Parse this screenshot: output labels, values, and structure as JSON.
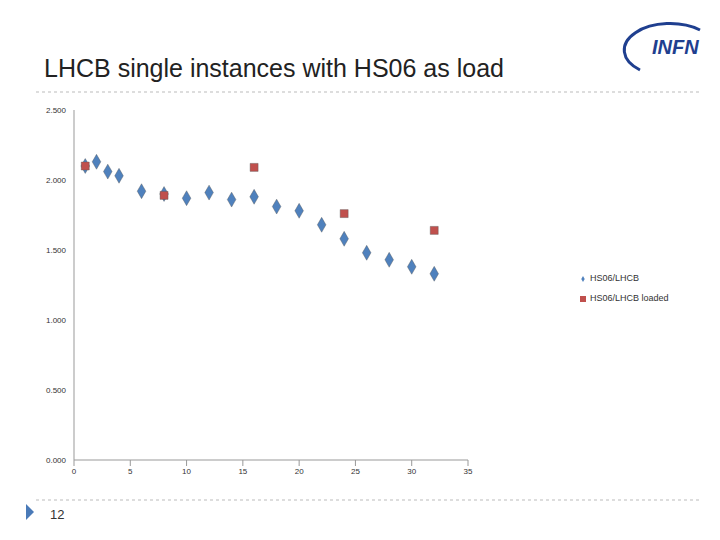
{
  "slide": {
    "logo": "INFN",
    "page": "12"
  },
  "chart_data": {
    "type": "scatter",
    "title": "LHCB single instances with HS06 as load",
    "xlim": [
      0,
      35
    ],
    "xticks": [
      0,
      5,
      10,
      15,
      20,
      25,
      30,
      35
    ],
    "ylim": [
      0,
      2.5
    ],
    "yticks": [
      {
        "value": 0,
        "label": "0.000"
      },
      {
        "value": 0.5,
        "label": "0.500"
      },
      {
        "value": 1,
        "label": "1.000"
      },
      {
        "value": 1.5,
        "label": "1.500"
      },
      {
        "value": 2,
        "label": "2.000"
      },
      {
        "value": 2.5,
        "label": "2.500"
      }
    ],
    "grid": false,
    "legend": "right",
    "series": [
      {
        "name": "HS06/LHCB",
        "color": "#4f81bd",
        "marker": "diamond",
        "x": [
          1,
          2,
          3,
          4,
          6,
          8,
          10,
          12,
          14,
          16,
          18,
          20,
          22,
          24,
          26,
          28,
          30,
          32
        ],
        "values": [
          2.1,
          2.13,
          2.06,
          2.03,
          1.92,
          1.9,
          1.87,
          1.91,
          1.86,
          1.88,
          1.81,
          1.78,
          1.68,
          1.58,
          1.48,
          1.43,
          1.38,
          1.33
        ]
      },
      {
        "name": "HS06/LHCB loaded",
        "color": "#c0504d",
        "marker": "square",
        "x": [
          1,
          8,
          16,
          24,
          32
        ],
        "values": [
          2.1,
          1.89,
          2.09,
          1.76,
          1.64
        ]
      }
    ]
  }
}
